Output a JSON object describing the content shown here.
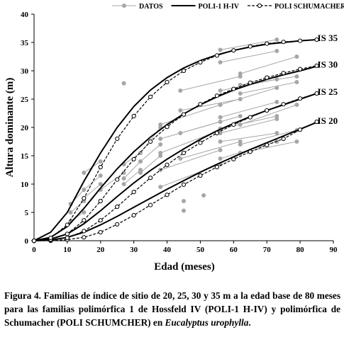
{
  "chart_data": {
    "type": "line",
    "x_label": "Edad (meses)",
    "y_label": "Altura dominante (m)",
    "xlim": [
      0,
      90
    ],
    "xticks": [
      0,
      10,
      20,
      30,
      40,
      50,
      60,
      70,
      80,
      90
    ],
    "ylim": [
      0,
      40
    ],
    "yticks": [
      0,
      5,
      10,
      15,
      20,
      25,
      30,
      35,
      40
    ],
    "curve_labels": [
      "IS 20",
      "IS 25",
      "IS 30",
      "IS 35"
    ],
    "series": [
      {
        "name": "DATOS",
        "color": "#a6a6a6",
        "style": "solid",
        "marker": "filled-circle",
        "lines": [
          {
            "x": [
              56,
              73
            ],
            "values": [
              33.7,
              35.5
            ]
          },
          {
            "x": [
              56,
              73
            ],
            "values": [
              31.5,
              33.5
            ]
          },
          {
            "x": [
              62,
              79
            ],
            "values": [
              29.5,
              32.5
            ]
          },
          {
            "x": [
              56,
              73
            ],
            "values": [
              26.5,
              28.5
            ]
          },
          {
            "x": [
              62,
              79
            ],
            "values": [
              27.5,
              29
            ]
          },
          {
            "x": [
              56,
              73
            ],
            "values": [
              24,
              27
            ]
          },
          {
            "x": [
              62,
              79
            ],
            "values": [
              26,
              28
            ]
          },
          {
            "x": [
              56,
              73
            ],
            "values": [
              21.8,
              24.5
            ]
          },
          {
            "x": [
              56,
              73
            ],
            "values": [
              19.8,
              22
            ]
          },
          {
            "x": [
              62,
              79
            ],
            "values": [
              20.5,
              24
            ]
          },
          {
            "x": [
              56,
              73
            ],
            "values": [
              19,
              21.5
            ]
          },
          {
            "x": [
              62,
              79
            ],
            "values": [
              17,
              19.5
            ]
          },
          {
            "x": [
              56,
              73
            ],
            "values": [
              17.5,
              19
            ]
          },
          {
            "x": [
              62,
              79
            ],
            "values": [
              15.5,
              17.5
            ]
          },
          {
            "x": [
              56,
              73
            ],
            "values": [
              14.5,
              17.5
            ]
          },
          {
            "x": [
              38,
              56
            ],
            "values": [
              20.5,
              24
            ]
          },
          {
            "x": [
              38,
              56
            ],
            "values": [
              18,
              21
            ]
          },
          {
            "x": [
              44,
              62
            ],
            "values": [
              26.5,
              29
            ]
          },
          {
            "x": [
              44,
              62
            ],
            "values": [
              23,
              25
            ]
          },
          {
            "x": [
              44,
              62
            ],
            "values": [
              19,
              22
            ]
          },
          {
            "x": [
              38,
              56
            ],
            "values": [
              15.5,
              19.5
            ]
          },
          {
            "x": [
              38,
              56
            ],
            "values": [
              12.5,
              16
            ]
          },
          {
            "x": [
              44,
              62
            ],
            "values": [
              14.5,
              17.5
            ]
          },
          {
            "x": [
              38,
              56
            ],
            "values": [
              9.5,
              13.5
            ]
          },
          {
            "x": [
              32,
              38
            ],
            "values": [
              15.5,
              20
            ]
          },
          {
            "x": [
              32,
              38
            ],
            "values": [
              12,
              15
            ]
          },
          {
            "x": [
              32,
              38
            ],
            "values": [
              14,
              17
            ]
          },
          {
            "x": [
              27,
              32
            ],
            "values": [
              13.5,
              15.5
            ]
          },
          {
            "x": [
              27,
              32
            ],
            "values": [
              10,
              12.5
            ]
          },
          {
            "x": [
              27,
              32
            ],
            "values": [
              11,
              14
            ]
          },
          {
            "x": [
              20,
              27
            ],
            "values": [
              9,
              12
            ]
          },
          {
            "x": [
              15,
              20
            ],
            "values": [
              9,
              11.5
            ]
          },
          {
            "x": [
              15,
              20
            ],
            "values": [
              12,
              14
            ]
          },
          {
            "x": [
              15,
              20
            ],
            "values": [
              7.5,
              10
            ]
          },
          {
            "x": [
              11,
              15
            ],
            "values": [
              6.5,
              9
            ]
          },
          {
            "x": [
              11,
              15
            ],
            "values": [
              3.5,
              5
            ]
          },
          {
            "x": [
              11,
              15
            ],
            "values": [
              5,
              7
            ]
          },
          {
            "x": [
              27
            ],
            "values": [
              27.8
            ]
          },
          {
            "x": [
              45
            ],
            "values": [
              5.3
            ]
          },
          {
            "x": [
              45
            ],
            "values": [
              7
            ]
          },
          {
            "x": [
              51
            ],
            "values": [
              8
            ]
          }
        ]
      },
      {
        "name": "POLI-1 H-IV",
        "color": "#000000",
        "style": "solid",
        "marker": "none",
        "lines": [
          {
            "x": [
              0,
              5,
              10,
              15,
              20,
              25,
              30,
              35,
              40,
              45,
              50,
              55,
              60,
              65,
              70,
              75,
              80,
              85
            ],
            "values": [
              0,
              0.1,
              0.6,
              1.5,
              2.8,
              4.3,
              5.9,
              7.5,
              9.1,
              10.6,
              12.1,
              13.5,
              14.8,
              16.1,
              17.3,
              18.5,
              19.7,
              20.9
            ]
          },
          {
            "x": [
              0,
              5,
              10,
              15,
              20,
              25,
              30,
              35,
              40,
              45,
              50,
              55,
              60,
              65,
              70,
              75,
              80,
              85
            ],
            "values": [
              0,
              0.3,
              1.2,
              3,
              5.3,
              7.8,
              10.2,
              12.4,
              14.4,
              16.2,
              17.9,
              19.4,
              20.7,
              21.9,
              23,
              24,
              25,
              26
            ]
          },
          {
            "x": [
              0,
              5,
              10,
              15,
              20,
              25,
              30,
              35,
              40,
              45,
              50,
              55,
              60,
              65,
              70,
              75,
              80,
              85
            ],
            "values": [
              0,
              0.6,
              2.5,
              5.7,
              9.3,
              12.7,
              15.7,
              18.3,
              20.5,
              22.4,
              24,
              25.4,
              26.6,
              27.6,
              28.5,
              29.3,
              30,
              30.8
            ]
          },
          {
            "x": [
              0,
              5,
              10,
              15,
              20,
              25,
              30,
              35,
              40,
              45,
              50,
              55,
              60,
              65,
              70,
              75,
              80,
              85
            ],
            "values": [
              0,
              1.5,
              5,
              10.5,
              15.5,
              20,
              23.7,
              26.6,
              28.8,
              30.5,
              31.8,
              32.8,
              33.6,
              34.2,
              34.7,
              35,
              35.3,
              35.5
            ]
          }
        ]
      },
      {
        "name": "POLI SCHUMACHER",
        "color": "#000000",
        "style": "dashed",
        "marker": "open-circle",
        "lines": [
          {
            "x": [
              0,
              5,
              10,
              15,
              20,
              25,
              30,
              35,
              40,
              45,
              50,
              55,
              60,
              65,
              70,
              75,
              80,
              85
            ],
            "values": [
              0,
              0,
              0.2,
              0.6,
              1.5,
              2.9,
              4.5,
              6.3,
              8.1,
              9.9,
              11.5,
              13,
              14.4,
              15.7,
              16.9,
              18,
              19.6,
              21
            ]
          },
          {
            "x": [
              0,
              5,
              10,
              15,
              20,
              25,
              30,
              35,
              40,
              45,
              50,
              55,
              60,
              65,
              70,
              75,
              80,
              85
            ],
            "values": [
              0,
              0.1,
              0.5,
              1.7,
              3.6,
              6,
              8.6,
              11.1,
              13.4,
              15.5,
              17.3,
              19,
              20.5,
              21.8,
              23,
              24.1,
              25.1,
              26
            ]
          },
          {
            "x": [
              0,
              5,
              10,
              15,
              20,
              25,
              30,
              35,
              40,
              45,
              50,
              55,
              60,
              65,
              70,
              75,
              80,
              85
            ],
            "values": [
              0,
              0.2,
              1.2,
              3.6,
              7,
              10.8,
              14.4,
              17.5,
              20.1,
              22.3,
              24.1,
              25.6,
              26.8,
              27.9,
              28.8,
              29.6,
              30.3,
              30.9
            ]
          },
          {
            "x": [
              0,
              5,
              10,
              15,
              20,
              25,
              30,
              35,
              40,
              45,
              50,
              55,
              60,
              65,
              70,
              75,
              80,
              85
            ],
            "values": [
              0,
              0.5,
              2.8,
              7.5,
              13,
              18,
              22,
              25.4,
              28,
              30,
              31.5,
              32.7,
              33.6,
              34.3,
              34.8,
              35.1,
              35.3,
              35.5
            ]
          }
        ]
      }
    ]
  },
  "caption": {
    "lead": "Figura 4. Familias de índice de sitio de 20, 25, 30 y 35 m a la edad base de 80 meses para las familias polimórfica 1 de Hossfeld IV (POLI-1 H-IV) y polimórfica de Schumacher (POLI SCHUMCHER) en ",
    "species": "Eucalyptus urophylla",
    "end": "."
  }
}
